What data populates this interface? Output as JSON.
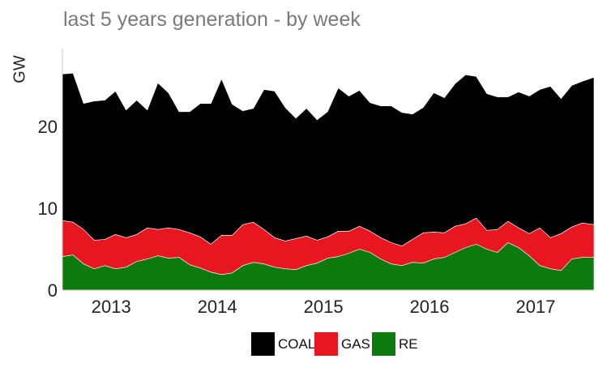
{
  "chart_data": {
    "type": "area",
    "title": "last 5 years generation - by week",
    "ylabel": "GW",
    "xlabel": "",
    "ylim": [
      0,
      29.5
    ],
    "xlim": [
      2012.54,
      2017.55
    ],
    "y_ticks": [
      0,
      10,
      20
    ],
    "x_ticks": [
      2013,
      2014,
      2015,
      2016,
      2017
    ],
    "x_tick_labels": [
      "2013",
      "2014",
      "2015",
      "2016",
      "2017"
    ],
    "stacked": true,
    "grid": false,
    "legend_position": "bottom",
    "colors": {
      "COAL": "#000000",
      "GAS": "#e8161f",
      "RE": "#0d7a0d"
    },
    "x": [
      2012.54,
      2012.64,
      2012.74,
      2012.84,
      2012.94,
      2013.04,
      2013.14,
      2013.24,
      2013.34,
      2013.44,
      2013.54,
      2013.64,
      2013.74,
      2013.84,
      2013.94,
      2014.04,
      2014.14,
      2014.24,
      2014.34,
      2014.44,
      2014.54,
      2014.64,
      2014.74,
      2014.84,
      2014.94,
      2015.04,
      2015.14,
      2015.24,
      2015.34,
      2015.44,
      2015.54,
      2015.64,
      2015.74,
      2015.84,
      2015.94,
      2016.04,
      2016.14,
      2016.24,
      2016.34,
      2016.44,
      2016.54,
      2016.64,
      2016.74,
      2016.84,
      2016.94,
      2017.04,
      2017.14,
      2017.24,
      2017.34,
      2017.44,
      2017.55
    ],
    "series": [
      {
        "name": "RE",
        "values": [
          4.1,
          4.3,
          3.2,
          2.6,
          3.0,
          2.6,
          2.8,
          3.5,
          3.8,
          4.2,
          3.9,
          4.0,
          3.1,
          2.7,
          2.2,
          1.9,
          2.1,
          3.0,
          3.4,
          3.2,
          2.8,
          2.6,
          2.5,
          3.0,
          3.3,
          3.9,
          4.1,
          4.5,
          5.0,
          4.6,
          3.8,
          3.2,
          3.0,
          3.4,
          3.3,
          3.8,
          4.0,
          4.6,
          5.2,
          5.6,
          5.0,
          4.6,
          5.8,
          5.2,
          4.2,
          3.0,
          2.6,
          2.4,
          3.8,
          4.0,
          4.0
        ]
      },
      {
        "name": "GAS",
        "values": [
          4.4,
          4.0,
          4.2,
          3.5,
          3.2,
          4.2,
          3.6,
          3.3,
          3.8,
          3.2,
          3.7,
          3.4,
          3.9,
          3.8,
          3.4,
          4.8,
          4.6,
          5.0,
          4.9,
          4.2,
          3.6,
          3.4,
          3.8,
          3.6,
          2.8,
          2.6,
          3.1,
          2.7,
          2.8,
          2.6,
          2.6,
          2.6,
          2.4,
          2.8,
          3.7,
          3.3,
          3.0,
          3.2,
          2.9,
          3.2,
          2.3,
          2.8,
          2.6,
          2.4,
          2.7,
          4.6,
          3.8,
          4.5,
          3.9,
          4.2,
          4.0
        ]
      },
      {
        "name": "COAL",
        "values": [
          17.9,
          18.2,
          15.4,
          17.0,
          17.0,
          17.5,
          15.6,
          16.4,
          14.4,
          17.9,
          16.5,
          14.4,
          14.8,
          16.3,
          17.2,
          19.1,
          16.0,
          13.9,
          13.9,
          17.1,
          17.9,
          16.3,
          14.7,
          15.6,
          14.7,
          15.3,
          17.5,
          16.5,
          16.6,
          15.7,
          16.1,
          16.7,
          16.3,
          15.3,
          15.3,
          17.0,
          16.5,
          17.4,
          18.2,
          17.3,
          16.7,
          16.2,
          15.2,
          16.6,
          16.8,
          16.9,
          18.5,
          16.5,
          17.3,
          17.3,
          18.0
        ]
      }
    ]
  },
  "legend": [
    {
      "label": "COAL",
      "color": "#000000"
    },
    {
      "label": "GAS",
      "color": "#e8161f"
    },
    {
      "label": "RE",
      "color": "#0d7a0d"
    }
  ]
}
